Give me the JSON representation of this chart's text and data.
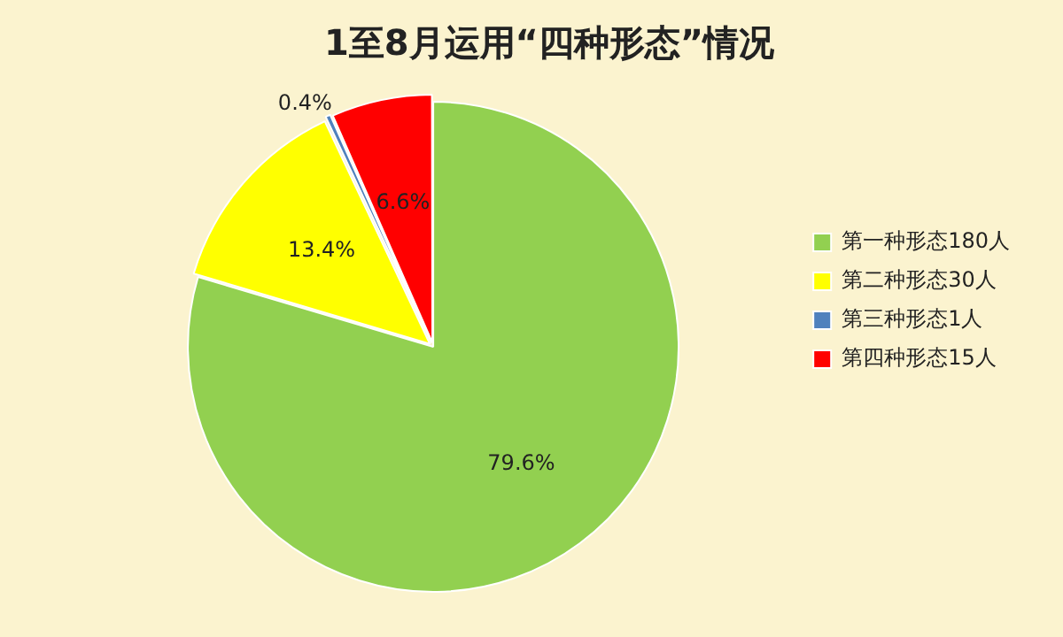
{
  "chart_data": {
    "type": "pie",
    "title": "1至8月运用“四种形态”情况",
    "categories": [
      "第一种形态180人",
      "第二种形态30人",
      "第三种形态1人",
      "第四种形态15人"
    ],
    "values": [
      79.6,
      13.4,
      0.4,
      6.6
    ],
    "value_labels": [
      "79.6%",
      "13.4%",
      "0.4%",
      "6.6%"
    ],
    "colors": [
      "#92d050",
      "#ffff00",
      "#4f81bd",
      "#ff0000"
    ],
    "legend": "right"
  }
}
